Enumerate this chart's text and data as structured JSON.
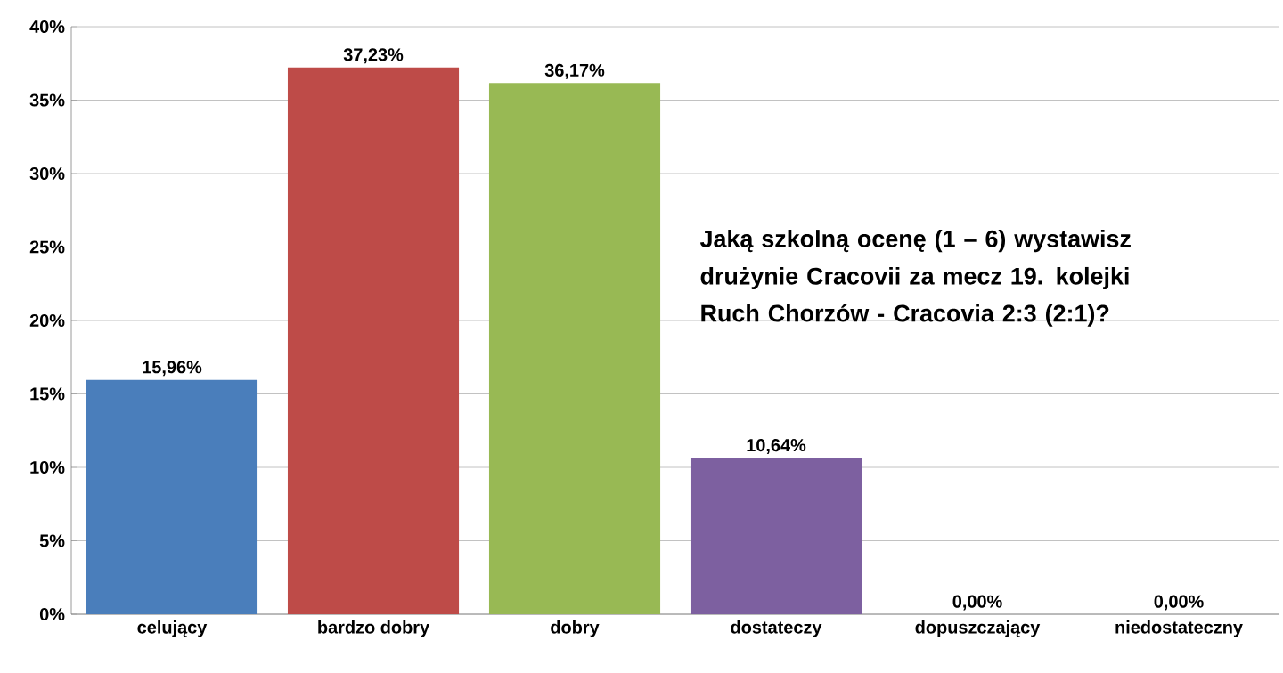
{
  "chart_data": {
    "type": "bar",
    "title": "Jaką szkolną ocenę (1 – 6) wystawisz drużynie Cracovii za mecz 19. kolejki Ruch Chorzów - Cracovia 2:3 (2:1)?",
    "categories": [
      "celujący",
      "bardzo dobry",
      "dobry",
      "dostateczy",
      "dopuszczający",
      "niedostateczny"
    ],
    "values": [
      15.96,
      37.23,
      36.17,
      10.64,
      0,
      0
    ],
    "colors": [
      "#4a7ebb",
      "#be4b48",
      "#98b954",
      "#7d60a0",
      "#4bacc6",
      "#f79646"
    ],
    "value_labels": [
      "15,96%",
      "37,23%",
      "36,17%",
      "10,64%",
      "0,00%",
      "0,00%"
    ],
    "ylim": [
      0,
      40
    ],
    "yticks": [
      {
        "value": 0,
        "label": "0%"
      },
      {
        "value": 5,
        "label": "5%"
      },
      {
        "value": 10,
        "label": "10%"
      },
      {
        "value": 15,
        "label": "15%"
      },
      {
        "value": 20,
        "label": "20%"
      },
      {
        "value": 25,
        "label": "25%"
      },
      {
        "value": 30,
        "label": "30%"
      },
      {
        "value": 35,
        "label": "35%"
      },
      {
        "value": 40,
        "label": "40%"
      }
    ],
    "grid": "y"
  }
}
